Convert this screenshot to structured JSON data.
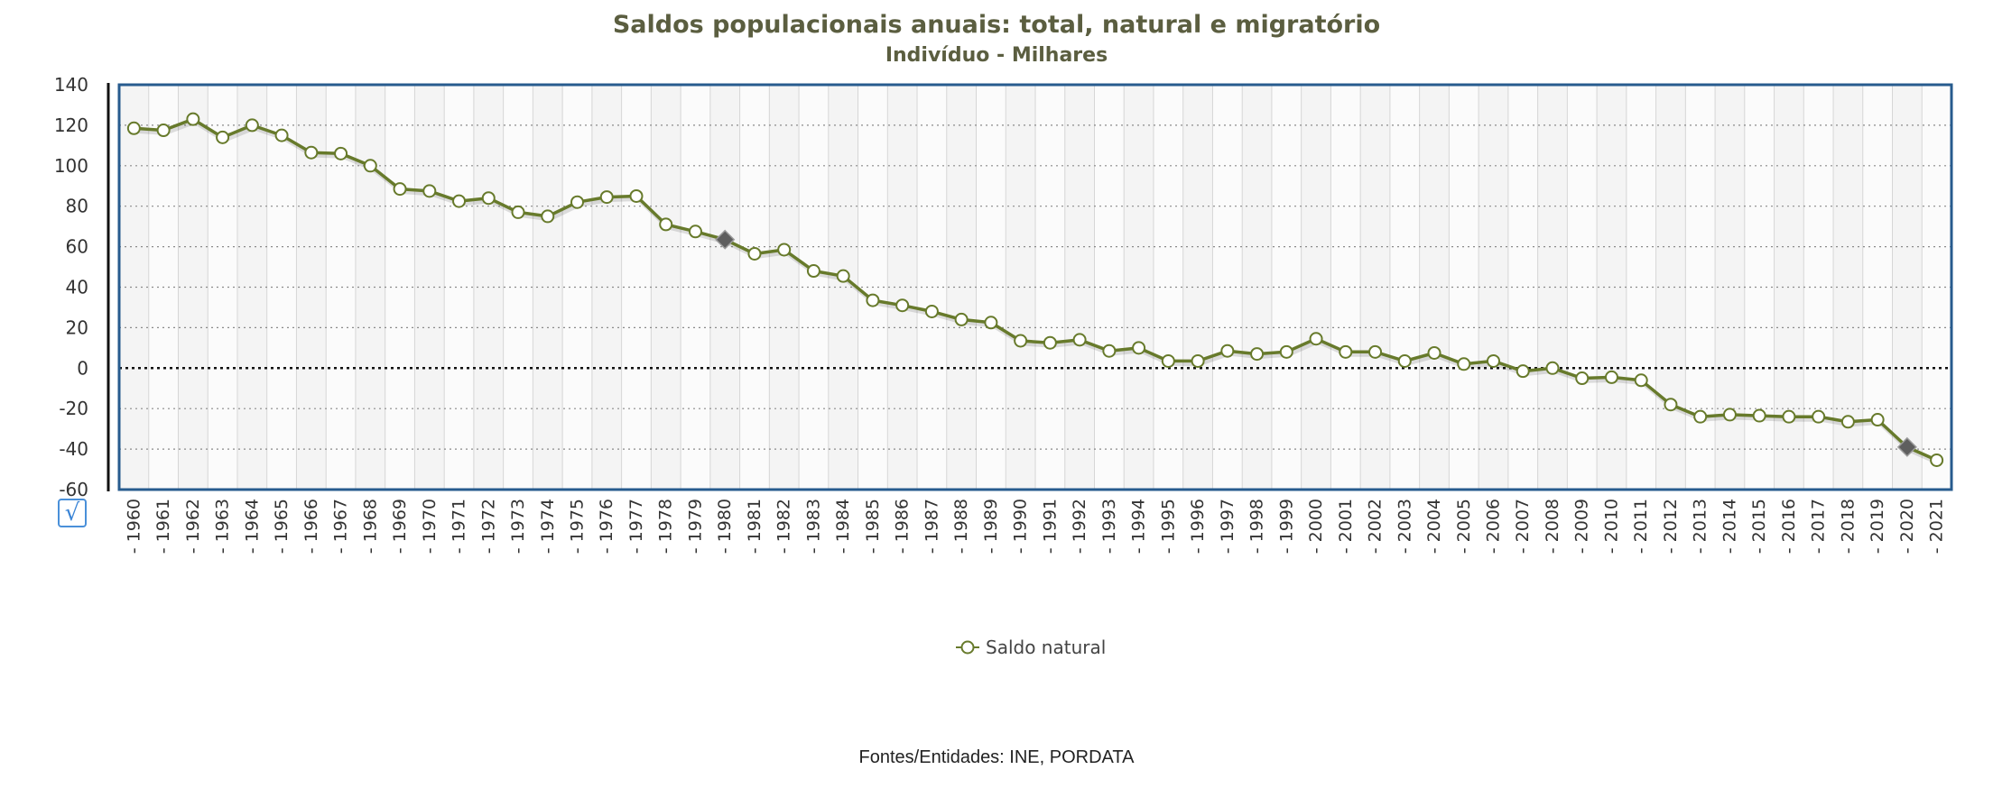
{
  "chart_data": {
    "type": "line",
    "title": "Saldos populacionais anuais: total, natural e migratório",
    "subtitle": "Indivíduo - Milhares",
    "xlabel": "",
    "ylabel": "",
    "ylim": [
      -60,
      140
    ],
    "yticks": [
      140,
      120,
      100,
      80,
      60,
      40,
      20,
      0,
      -20,
      -40,
      -60
    ],
    "grid": true,
    "legend_position": "bottom-center",
    "categories": [
      "1960",
      "1961",
      "1962",
      "1963",
      "1964",
      "1965",
      "1966",
      "1967",
      "1968",
      "1969",
      "1970",
      "1971",
      "1972",
      "1973",
      "1974",
      "1975",
      "1976",
      "1977",
      "1978",
      "1979",
      "1980",
      "1981",
      "1982",
      "1983",
      "1984",
      "1985",
      "1986",
      "1987",
      "1988",
      "1989",
      "1990",
      "1991",
      "1992",
      "1993",
      "1994",
      "1995",
      "1996",
      "1997",
      "1998",
      "1999",
      "2000",
      "2001",
      "2002",
      "2003",
      "2004",
      "2005",
      "2006",
      "2007",
      "2008",
      "2009",
      "2010",
      "2011",
      "2012",
      "2013",
      "2014",
      "2015",
      "2016",
      "2017",
      "2018",
      "2019",
      "2020",
      "2021"
    ],
    "series": [
      {
        "name": "Saldo natural",
        "color": "#677a2b",
        "values": [
          118.5,
          117.5,
          123,
          114,
          120,
          115,
          106.5,
          106,
          100,
          88.5,
          87.5,
          82.5,
          84,
          77,
          75,
          82,
          84.5,
          85,
          71,
          67.5,
          63.5,
          56.5,
          58.5,
          48,
          45.5,
          33.5,
          31,
          28,
          24,
          22.5,
          13.5,
          12.5,
          14,
          8.5,
          10,
          3.5,
          3.5,
          8.5,
          7,
          8,
          14.5,
          8,
          8,
          3.5,
          7.5,
          2,
          3.5,
          -1.5,
          0,
          -5,
          -4.5,
          -6,
          -18,
          -24,
          -23,
          -23.5,
          -24,
          -24,
          -26.5,
          -25.5,
          -39,
          -45.5
        ]
      }
    ],
    "highlighted_points": [
      "1980",
      "2020"
    ]
  },
  "ui": {
    "checkbox_glyph": "√"
  },
  "source": "Fontes/Entidades: INE, PORDATA"
}
